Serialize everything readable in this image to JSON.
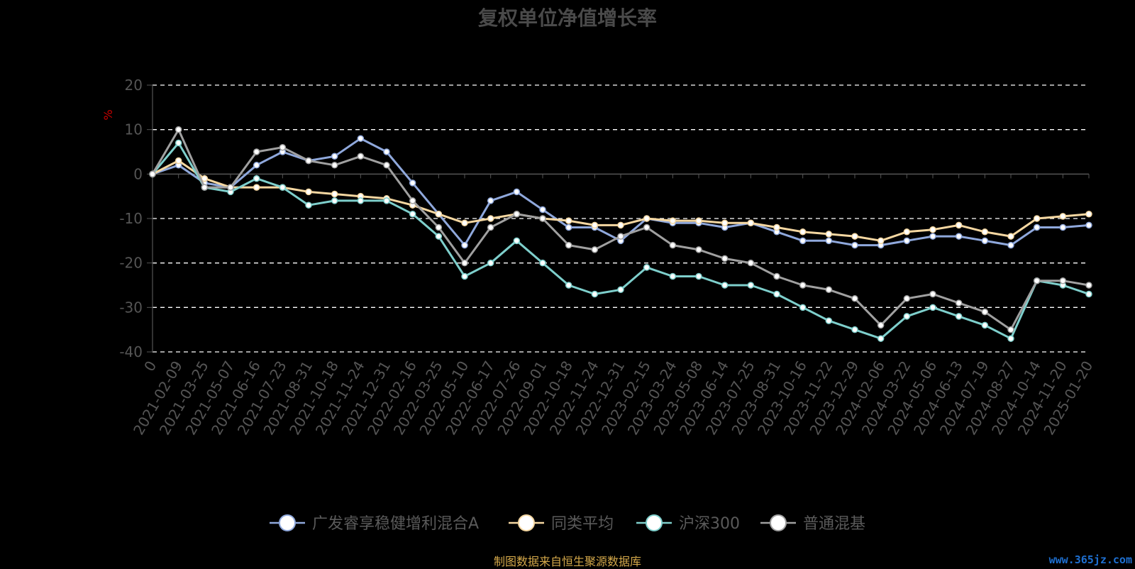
{
  "chart_data": {
    "type": "line",
    "title": "复权单位净值增长率",
    "ylabel": "%",
    "ylim": [
      -40,
      20
    ],
    "yticks": [
      20,
      10,
      0,
      -10,
      -20,
      -30,
      -40
    ],
    "grid": true,
    "legend_position": "bottom",
    "x_tick_labels": [
      "0",
      "2021-02-09",
      "2021-03-25",
      "2021-05-07",
      "2021-06-16",
      "2021-07-23",
      "2021-08-31",
      "2021-10-18",
      "2021-11-24",
      "2021-12-31",
      "2022-02-16",
      "2022-03-25",
      "2022-05-10",
      "2022-06-17",
      "2022-07-26",
      "2022-09-01",
      "2022-10-18",
      "2022-11-24",
      "2022-12-31",
      "2023-02-15",
      "2023-03-24",
      "2023-05-08",
      "2023-06-14",
      "2023-07-25",
      "2023-08-31",
      "2023-10-16",
      "2023-11-22",
      "2023-12-29",
      "2024-02-06",
      "2024-03-22",
      "2024-05-06",
      "2024-06-13",
      "2024-07-19",
      "2024-08-27",
      "2024-10-14",
      "2024-11-20",
      "2025-01-20"
    ],
    "x": [
      "0",
      "2021-02-09",
      "2021-03-25",
      "2021-05-07",
      "2021-06-16",
      "2021-07-23",
      "2021-08-31",
      "2021-10-18",
      "2021-11-24",
      "2021-12-31",
      "2022-02-16",
      "2022-03-25",
      "2022-05-10",
      "2022-06-17",
      "2022-07-26",
      "2022-09-01",
      "2022-10-18",
      "2022-11-24",
      "2022-12-31",
      "2023-02-15",
      "2023-03-24",
      "2023-05-08",
      "2023-06-14",
      "2023-07-25",
      "2023-08-31",
      "2023-10-16",
      "2023-11-22",
      "2023-12-29",
      "2024-02-06",
      "2024-03-22",
      "2024-05-06",
      "2024-06-13",
      "2024-07-19",
      "2024-08-27",
      "2024-10-14",
      "2024-11-20",
      "2025-01-20"
    ],
    "series": [
      {
        "name": "广发睿享稳健增利混合A",
        "color": "#8fa8dc",
        "values": [
          0,
          2,
          -2,
          -3,
          2,
          5,
          3,
          4,
          8,
          5,
          -2,
          -9,
          -16,
          -6,
          -4,
          -8,
          -12,
          -12,
          -15,
          -10,
          -11,
          -11,
          -12,
          -11,
          -13,
          -15,
          -15,
          -16,
          -16,
          -15,
          -14,
          -14,
          -15,
          -16,
          -12,
          -12,
          -11.5
        ]
      },
      {
        "name": "同类平均",
        "color": "#f5d7a1",
        "values": [
          0,
          3,
          -1,
          -3,
          -3,
          -3,
          -4,
          -4.5,
          -5,
          -5.5,
          -7,
          -9,
          -11,
          -10,
          -9,
          -10,
          -10.5,
          -11.5,
          -11.5,
          -10,
          -10.5,
          -10.5,
          -11,
          -11,
          -12,
          -13,
          -13.5,
          -14,
          -15,
          -13,
          -12.5,
          -11.5,
          -13,
          -14,
          -10,
          -9.5,
          -9
        ]
      },
      {
        "name": "沪深300",
        "color": "#7ecfcc",
        "values": [
          0,
          7,
          -3,
          -4,
          -1,
          -3,
          -7,
          -6,
          -6,
          -6,
          -9,
          -14,
          -23,
          -20,
          -15,
          -20,
          -25,
          -27,
          -26,
          -21,
          -23,
          -23,
          -25,
          -25,
          -27,
          -30,
          -33,
          -35,
          -37,
          -32,
          -30,
          -32,
          -34,
          -37,
          -24,
          -25,
          -27
        ]
      },
      {
        "name": "普通混基",
        "color": "#a0a0a0",
        "values": [
          0,
          10,
          -3,
          -3,
          5,
          6,
          3,
          2,
          4,
          2,
          -6,
          -12,
          -20,
          -12,
          -9,
          -10,
          -16,
          -17,
          -14,
          -12,
          -16,
          -17,
          -19,
          -20,
          -23,
          -25,
          -26,
          -28,
          -34,
          -28,
          -27,
          -29,
          -31,
          -35,
          -24,
          -24,
          -25
        ]
      }
    ]
  },
  "source_note": "制图数据来自恒生聚源数据库",
  "watermark": "www.365jz.com"
}
